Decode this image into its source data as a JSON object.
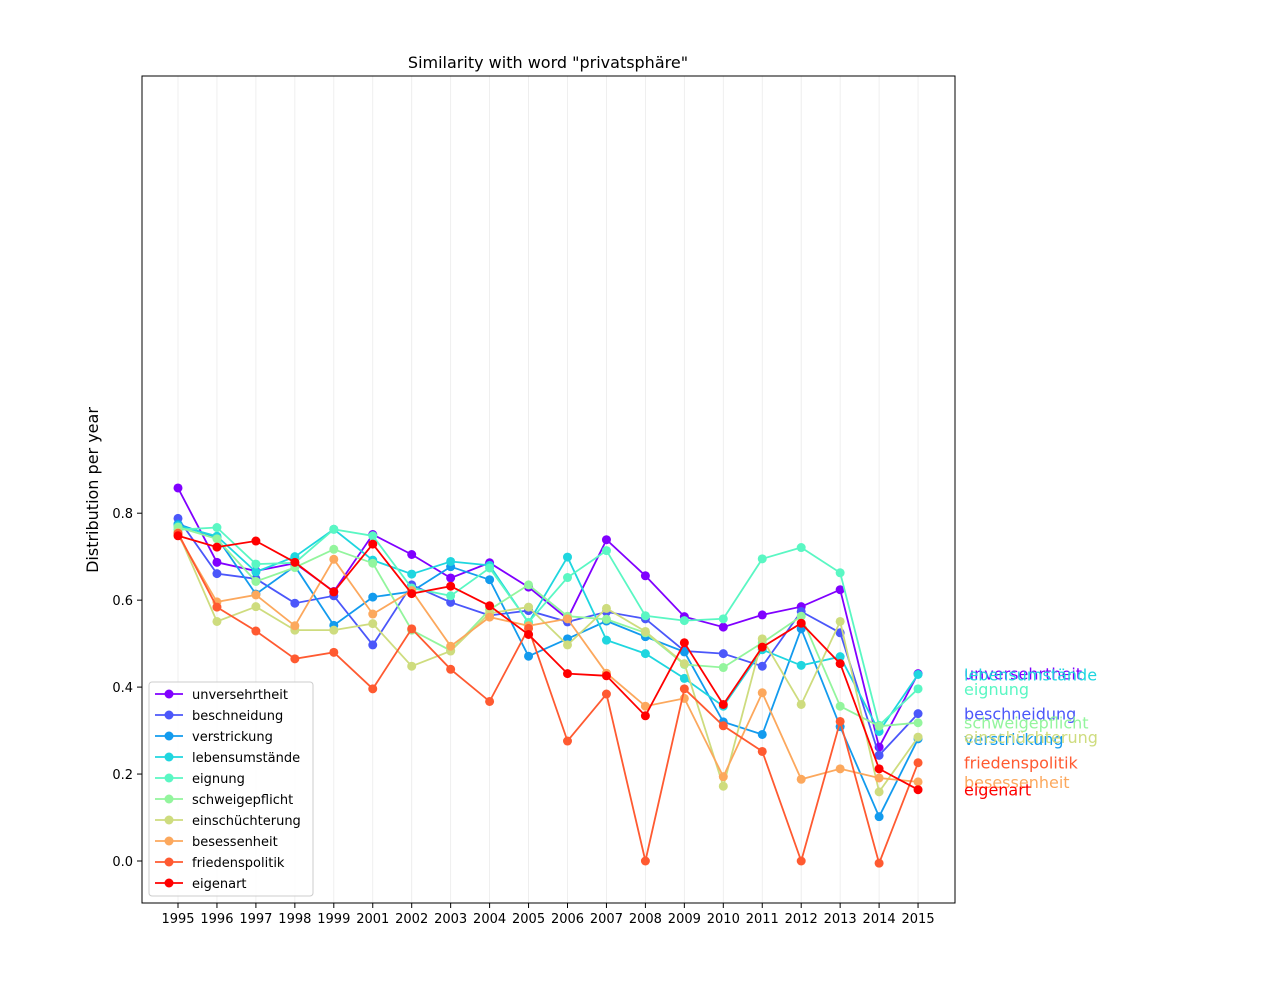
{
  "chart_data": {
    "type": "line",
    "title": "Similarity with word \"privatsphäre\"",
    "xlabel": "",
    "ylabel": "Distribution per year",
    "ylim": [
      -0.05,
      0.9
    ],
    "yticks": [
      "0.0",
      "0.2",
      "0.4",
      "0.6",
      "0.8"
    ],
    "ytick_values": [
      0.0,
      0.2,
      0.4,
      0.6,
      0.8
    ],
    "categories": [
      "1995",
      "1996",
      "1997",
      "1998",
      "1999",
      "2001",
      "2002",
      "2003",
      "2004",
      "2005",
      "2006",
      "2007",
      "2008",
      "2009",
      "2010",
      "2011",
      "2012",
      "2013",
      "2014",
      "2015"
    ],
    "grid": "vertical",
    "legend_position": "lower-left",
    "series": [
      {
        "name": "unversehrtheit",
        "color": "#8000ff",
        "values": [
          0.858,
          0.687,
          0.667,
          0.685,
          0.62,
          0.751,
          0.705,
          0.651,
          0.686,
          0.63,
          0.557,
          0.739,
          0.656,
          0.562,
          0.538,
          0.566,
          0.585,
          0.624,
          0.262,
          0.431
        ]
      },
      {
        "name": "beschneidung",
        "color": "#4b57fa",
        "values": [
          0.788,
          0.661,
          0.649,
          0.593,
          0.61,
          0.497,
          0.635,
          0.595,
          0.565,
          0.576,
          0.55,
          0.573,
          0.557,
          0.483,
          0.477,
          0.448,
          0.574,
          0.525,
          0.243,
          0.339
        ]
      },
      {
        "name": "verstrickung",
        "color": "#139bee",
        "values": [
          0.775,
          0.744,
          0.614,
          0.678,
          0.542,
          0.607,
          0.62,
          0.677,
          0.647,
          0.471,
          0.511,
          0.552,
          0.516,
          0.481,
          0.32,
          0.291,
          0.534,
          0.309,
          0.102,
          0.281
        ]
      },
      {
        "name": "lebensumstände",
        "color": "#1fd6df",
        "values": [
          0.771,
          0.747,
          0.665,
          0.7,
          0.763,
          0.692,
          0.66,
          0.689,
          0.68,
          0.548,
          0.699,
          0.508,
          0.477,
          0.42,
          0.356,
          0.486,
          0.45,
          0.47,
          0.298,
          0.429
        ]
      },
      {
        "name": "eignung",
        "color": "#5af7c3",
        "values": [
          0.762,
          0.767,
          0.683,
          0.686,
          0.763,
          0.748,
          0.628,
          0.61,
          0.674,
          0.549,
          0.652,
          0.714,
          0.564,
          0.553,
          0.557,
          0.695,
          0.721,
          0.663,
          0.312,
          0.396
        ]
      },
      {
        "name": "schweigepflicht",
        "color": "#93f59d",
        "values": [
          0.768,
          0.741,
          0.643,
          0.675,
          0.717,
          0.685,
          0.531,
          0.484,
          0.578,
          0.635,
          0.563,
          0.556,
          0.525,
          0.452,
          0.445,
          0.502,
          0.563,
          0.356,
          0.31,
          0.318
        ]
      },
      {
        "name": "einschüchterung",
        "color": "#cedc7e",
        "values": [
          0.756,
          0.551,
          0.585,
          0.531,
          0.531,
          0.546,
          0.448,
          0.483,
          0.57,
          0.584,
          0.497,
          0.581,
          0.528,
          0.454,
          0.172,
          0.511,
          0.36,
          0.551,
          0.159,
          0.285
        ]
      },
      {
        "name": "besessenheit",
        "color": "#fca85d",
        "values": [
          0.75,
          0.596,
          0.612,
          0.541,
          0.694,
          0.568,
          0.622,
          0.494,
          0.561,
          0.541,
          0.557,
          0.432,
          0.356,
          0.374,
          0.194,
          0.387,
          0.188,
          0.212,
          0.191,
          0.182
        ]
      },
      {
        "name": "friedenspolitik",
        "color": "#ff5a31",
        "values": [
          0.754,
          0.584,
          0.529,
          0.465,
          0.48,
          0.396,
          0.534,
          0.441,
          0.367,
          0.535,
          0.276,
          0.384,
          0.0,
          0.396,
          0.311,
          0.252,
          0.0,
          0.321,
          -0.005,
          0.226
        ]
      },
      {
        "name": "eigenart",
        "color": "#ff0000",
        "values": [
          0.748,
          0.722,
          0.736,
          0.687,
          0.619,
          0.729,
          0.615,
          0.632,
          0.587,
          0.521,
          0.431,
          0.426,
          0.334,
          0.502,
          0.36,
          0.492,
          0.547,
          0.454,
          0.212,
          0.164
        ]
      }
    ],
    "end_labels": [
      {
        "text": "unversehrtheit",
        "color": "#8000ff"
      },
      {
        "text": "beschneidung",
        "color": "#4b57fa"
      },
      {
        "text": "verstrickung",
        "color": "#139bee"
      },
      {
        "text": "lebensumstände",
        "color": "#1fd6df"
      },
      {
        "text": "eignung",
        "color": "#5af7c3"
      },
      {
        "text": "schweigepflicht",
        "color": "#93f59d"
      },
      {
        "text": "einschüchterung",
        "color": "#cedc7e"
      },
      {
        "text": "besessenheit",
        "color": "#fca85d"
      },
      {
        "text": "friedenspolitik",
        "color": "#ff5a31"
      },
      {
        "text": "eigenart",
        "color": "#ff0000"
      }
    ]
  }
}
